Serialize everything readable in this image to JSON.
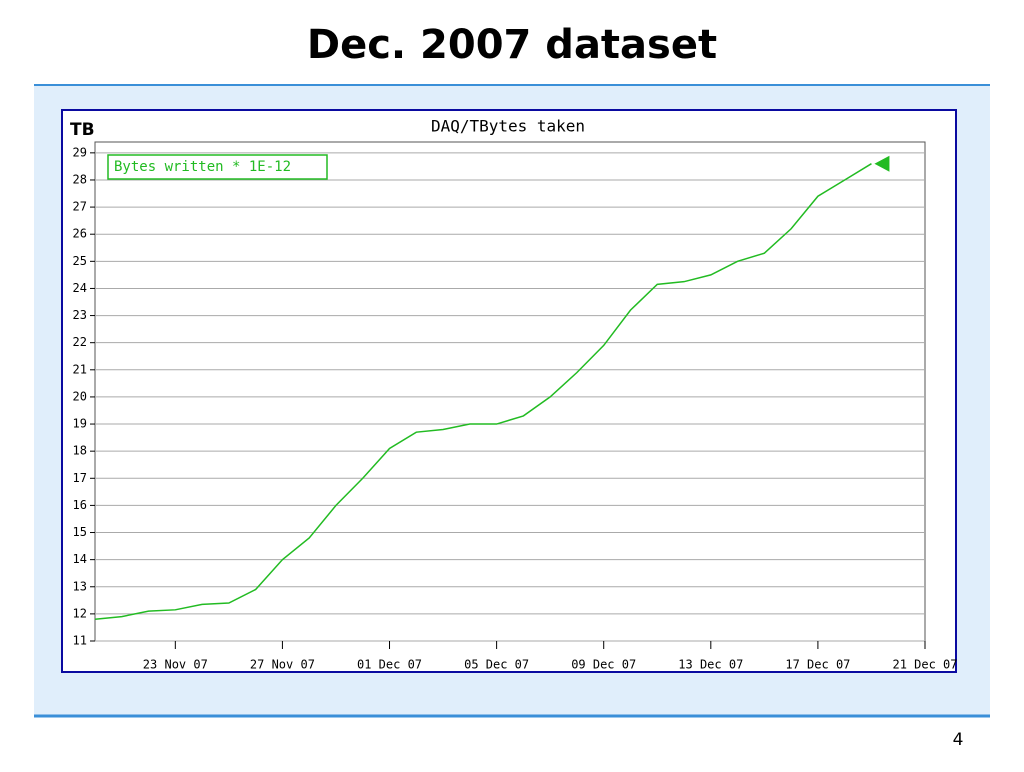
{
  "slide": {
    "title": "Dec. 2007 dataset",
    "page_number": "4"
  },
  "chart_data": {
    "type": "line",
    "title": "DAQ/TBytes taken",
    "ylabel": "TB",
    "x": [
      "2007-11-20",
      "2007-11-21",
      "2007-11-22",
      "2007-11-23",
      "2007-11-24",
      "2007-11-25",
      "2007-11-26",
      "2007-11-27",
      "2007-11-28",
      "2007-11-29",
      "2007-11-30",
      "2007-12-01",
      "2007-12-02",
      "2007-12-03",
      "2007-12-04",
      "2007-12-05",
      "2007-12-06",
      "2007-12-07",
      "2007-12-08",
      "2007-12-09",
      "2007-12-10",
      "2007-12-11",
      "2007-12-12",
      "2007-12-13",
      "2007-12-14",
      "2007-12-15",
      "2007-12-16",
      "2007-12-17",
      "2007-12-18",
      "2007-12-19"
    ],
    "series": [
      {
        "name": "Bytes written * 1E-12",
        "color": "#22bb22",
        "values": [
          11.8,
          11.9,
          12.1,
          12.15,
          12.35,
          12.4,
          12.9,
          14.0,
          14.8,
          16.0,
          17.0,
          18.1,
          18.7,
          18.8,
          19.0,
          19.0,
          19.3,
          20.0,
          20.9,
          21.9,
          23.2,
          24.15,
          24.25,
          24.5,
          25.0,
          25.3,
          26.2,
          27.4,
          28.0,
          28.6
        ]
      }
    ],
    "xlim": [
      "2007-11-20",
      "2007-12-21"
    ],
    "xticks": [
      {
        "value": "2007-11-23",
        "label": "23 Nov 07"
      },
      {
        "value": "2007-11-27",
        "label": "27 Nov 07"
      },
      {
        "value": "2007-12-01",
        "label": "01 Dec 07"
      },
      {
        "value": "2007-12-05",
        "label": "05 Dec 07"
      },
      {
        "value": "2007-12-09",
        "label": "09 Dec 07"
      },
      {
        "value": "2007-12-13",
        "label": "13 Dec 07"
      },
      {
        "value": "2007-12-17",
        "label": "17 Dec 07"
      },
      {
        "value": "2007-12-21",
        "label": "21 Dec 07"
      }
    ],
    "ylim": [
      11,
      29.4
    ],
    "yticks": [
      11,
      12,
      13,
      14,
      15,
      16,
      17,
      18,
      19,
      20,
      21,
      22,
      23,
      24,
      25,
      26,
      27,
      28,
      29
    ],
    "grid": true,
    "legend": "upper left"
  }
}
